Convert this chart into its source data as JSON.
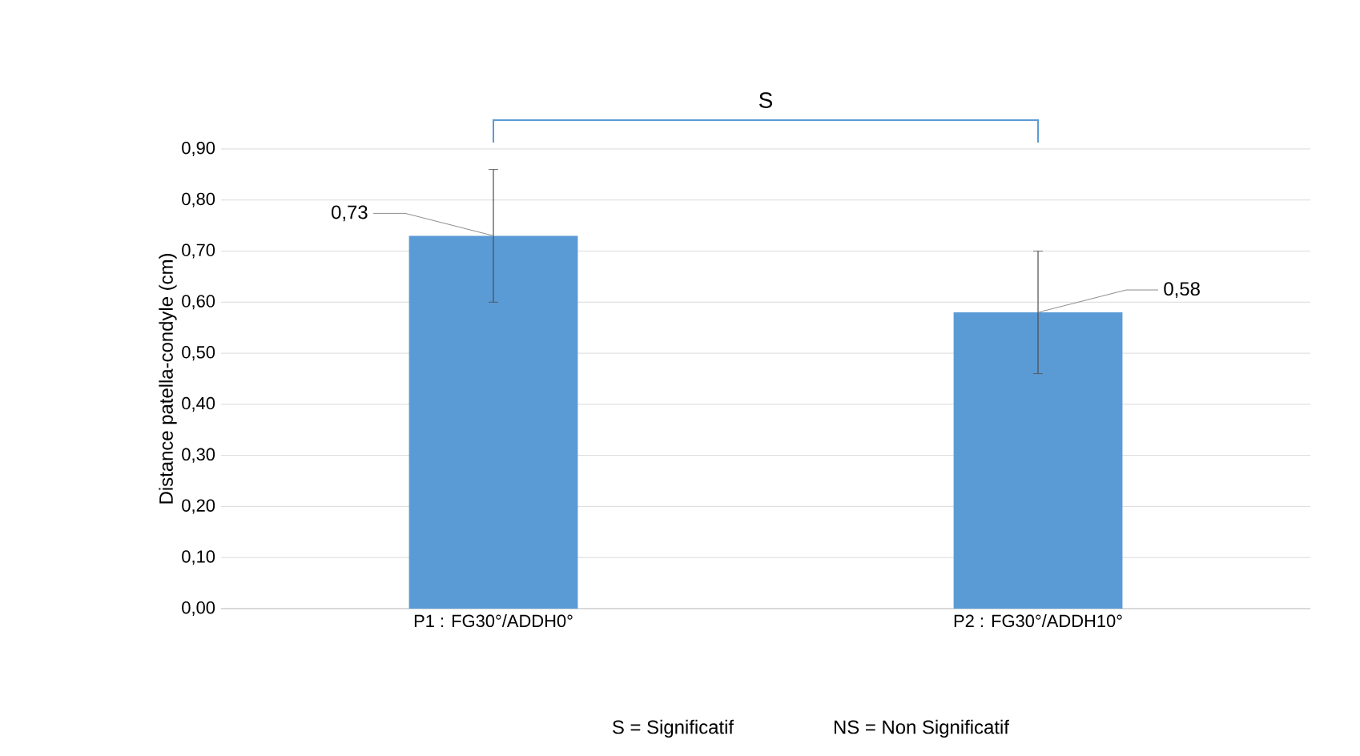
{
  "chart_data": {
    "type": "bar",
    "ylabel": "Distance patella-condyle  (cm)",
    "categories": [
      "P1 : FG30°/ADDH0°",
      "P2 : FG30°/ADDH10°"
    ],
    "values": [
      0.73,
      0.58
    ],
    "errors": [
      0.13,
      0.12
    ],
    "value_labels": [
      "0,73",
      "0,58"
    ],
    "color": "#5b9bd5",
    "ylim": [
      0,
      0.9
    ],
    "yticks": [
      {
        "value": 0,
        "label": "0,00"
      },
      {
        "value": 0.1,
        "label": "0,10"
      },
      {
        "value": 0.2,
        "label": "0,20"
      },
      {
        "value": 0.3,
        "label": "0,30"
      },
      {
        "value": 0.4,
        "label": "0,40"
      },
      {
        "value": 0.5,
        "label": "0,50"
      },
      {
        "value": 0.6,
        "label": "0,60"
      },
      {
        "value": 0.7,
        "label": "0,70"
      },
      {
        "value": 0.8,
        "label": "0,80"
      },
      {
        "value": 0.9,
        "label": "0,90"
      }
    ],
    "grid": "y",
    "annotations": [
      "S",
      "S = Significatif",
      "NS = Non Significatif"
    ]
  }
}
